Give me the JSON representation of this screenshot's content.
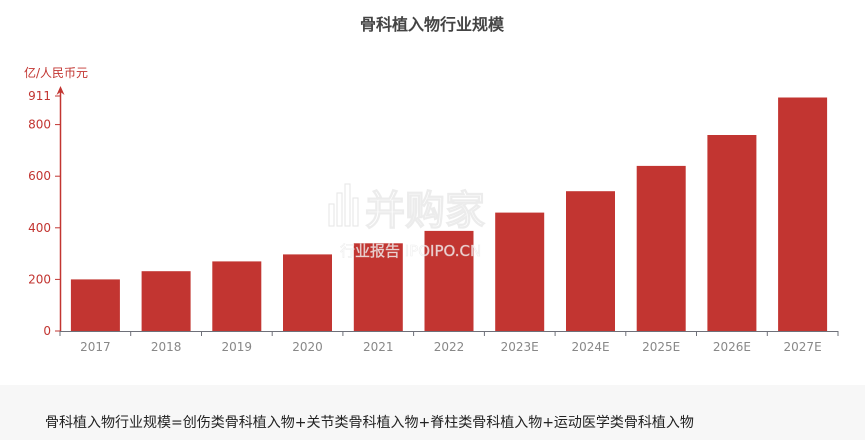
{
  "chart_data": {
    "type": "bar",
    "title": "骨科植入物行业规模",
    "ylabel": "亿/人民币元",
    "xlabel": "",
    "categories": [
      "2017",
      "2018",
      "2019",
      "2020",
      "2021",
      "2022",
      "2023E",
      "2024E",
      "2025E",
      "2026E",
      "2027E"
    ],
    "values": [
      200,
      232,
      270,
      297,
      340,
      388,
      459,
      542,
      640,
      760,
      905
    ],
    "ylim": [
      0,
      911
    ],
    "yticks": [
      "0",
      "200",
      "400",
      "600",
      "800",
      "911"
    ],
    "ytick_values": [
      0,
      200,
      400,
      600,
      800,
      911
    ],
    "grid": false,
    "legend": "none"
  },
  "colors": {
    "bar": "#c23531",
    "axis": "#c23531",
    "xaxis": "#6e7079",
    "footer_bg": "#f7f7f7"
  },
  "watermark": {
    "main": "并购家",
    "sub": "行业报告 IPOIPO.CN"
  },
  "footnote": "骨科植入物行业规模=创伤类骨科植入物+关节类骨科植入物+脊柱类骨科植入物+运动医学类骨科植入物"
}
